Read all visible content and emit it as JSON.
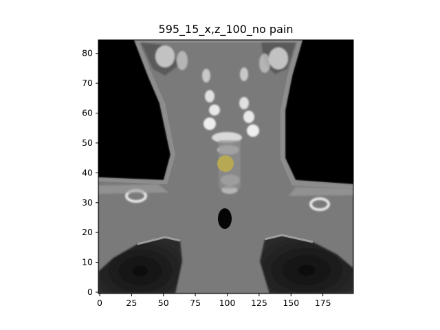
{
  "title": "595_15_x,z_100_no pain",
  "x_ticks": [
    "0",
    "25",
    "50",
    "75",
    "100",
    "125",
    "150",
    "175"
  ],
  "y_ticks": [
    "0",
    "10",
    "20",
    "30",
    "40",
    "50",
    "60",
    "70",
    "80"
  ],
  "image": {
    "x_range": [
      0,
      200
    ],
    "y_range": [
      0,
      85
    ],
    "overlay_color": "#bfae4a",
    "overlay_center": [
      99,
      43
    ]
  }
}
